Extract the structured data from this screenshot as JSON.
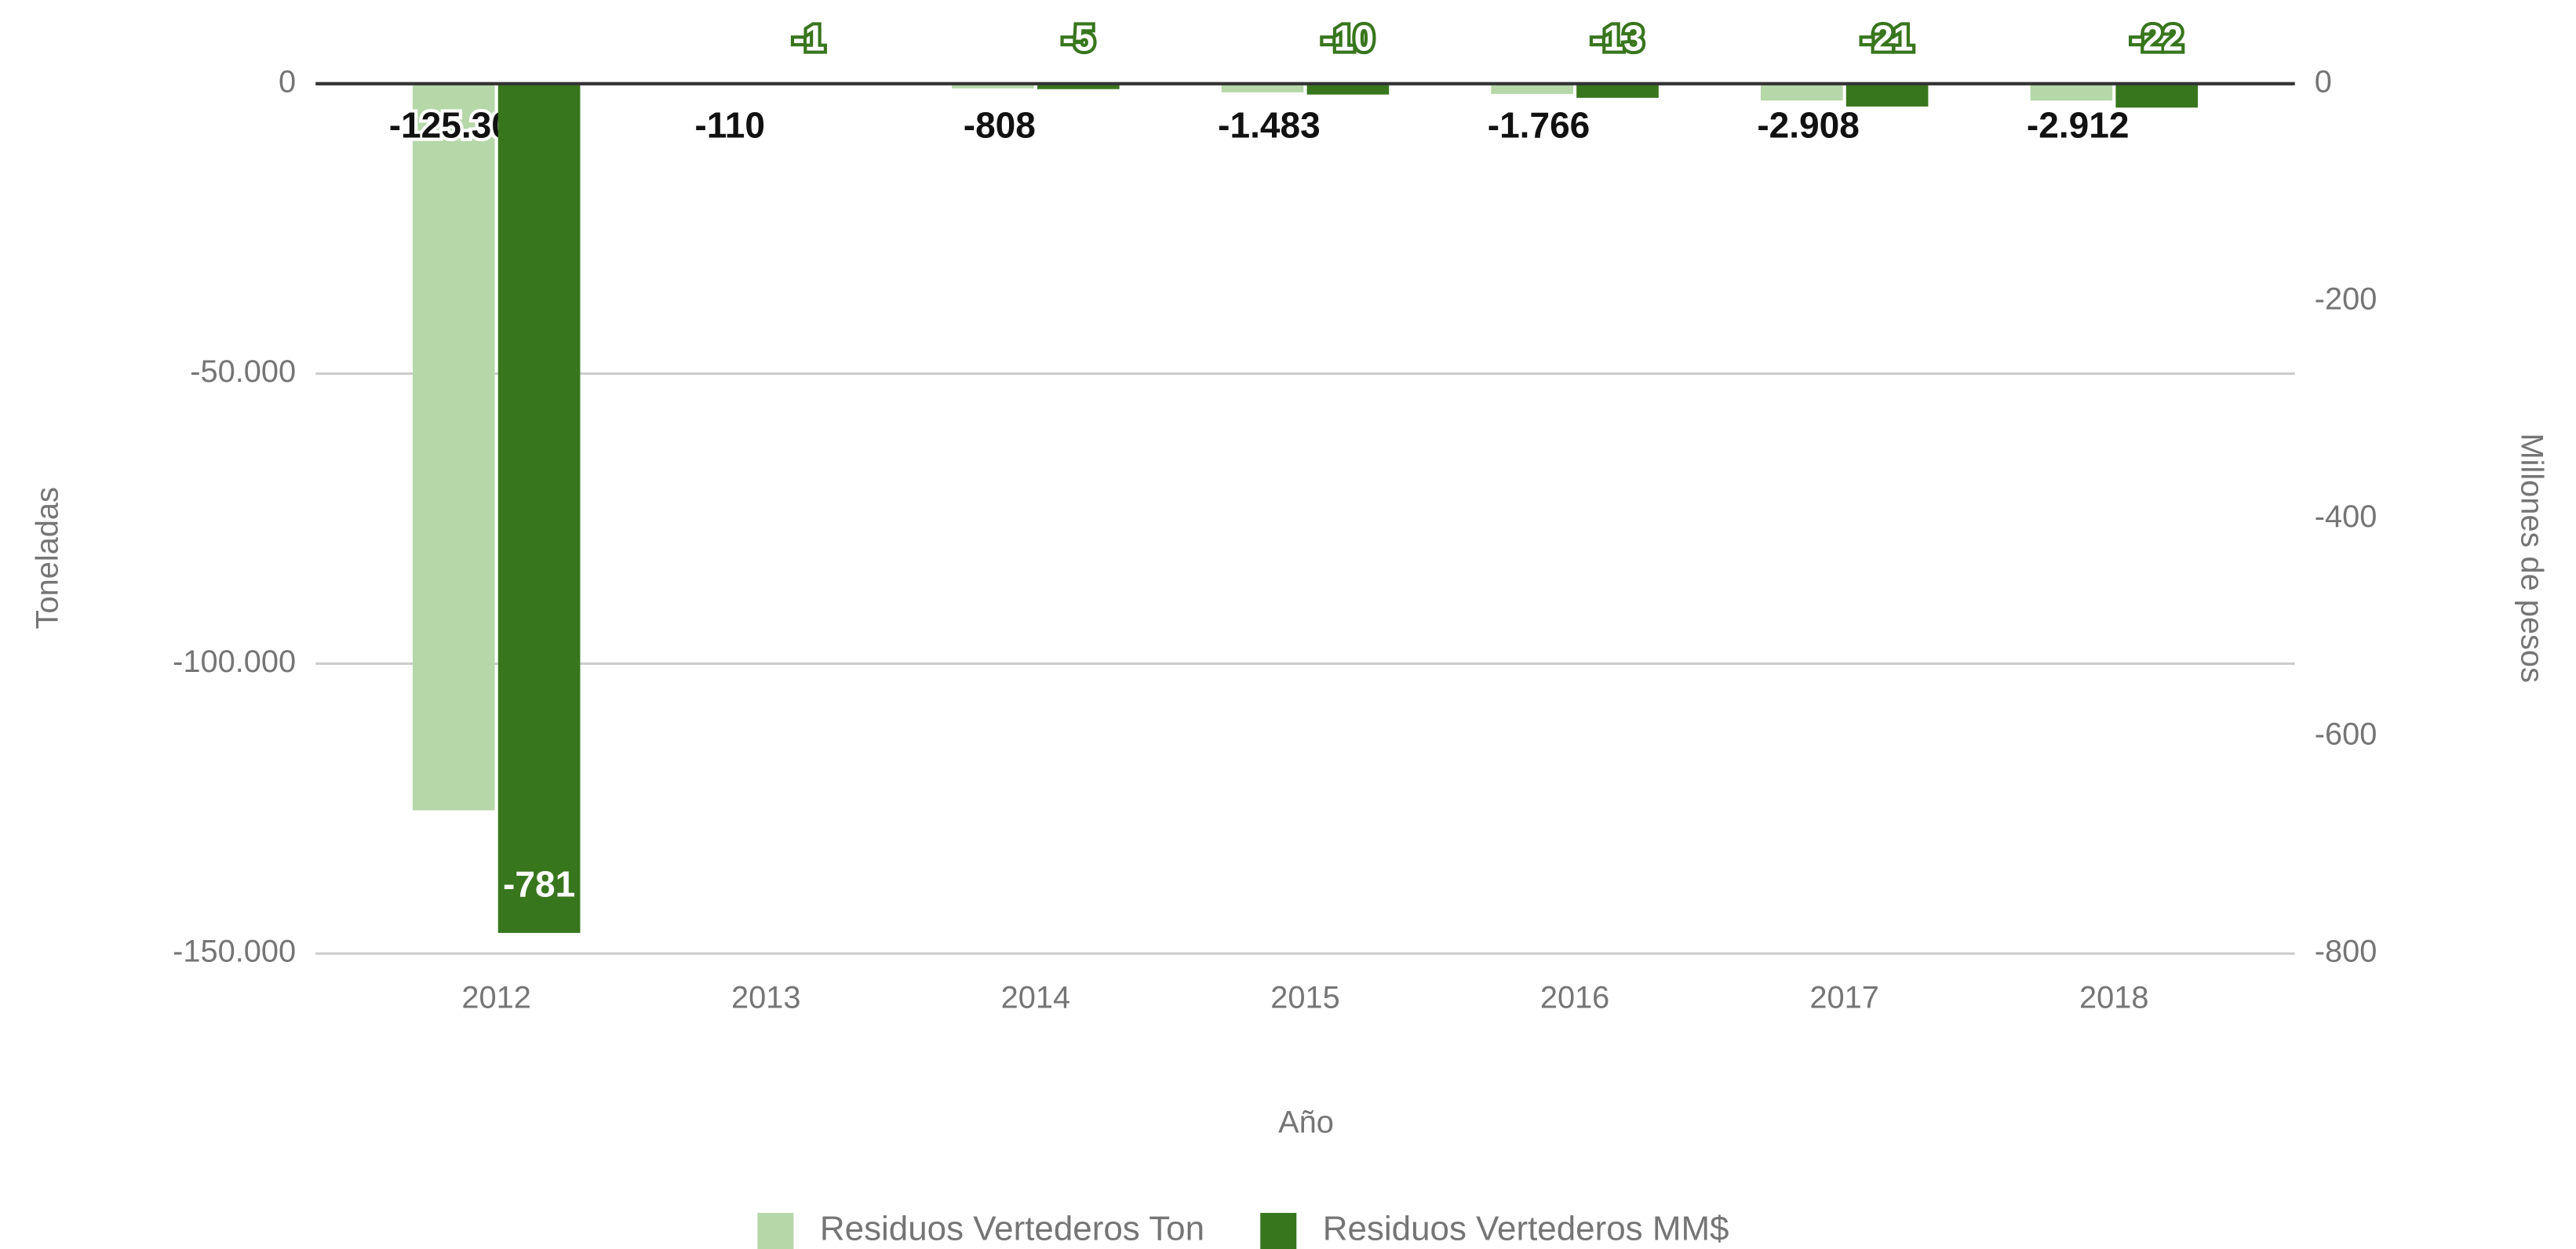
{
  "chart_data": {
    "type": "bar",
    "x_label": "Año",
    "y_label": "Toneladas",
    "y2_label": "Millones de pesos",
    "categories": [
      "2012",
      "2013",
      "2014",
      "2015",
      "2016",
      "2017",
      "2018"
    ],
    "series": [
      {
        "name": "Residuos Vertederos Ton",
        "color": "#b6d7a8",
        "values": [
          -125303,
          -110,
          -808,
          -1483,
          -1766,
          -2908,
          -2912
        ],
        "value_labels": [
          "-125.303",
          "-110",
          "-808",
          "-1.483",
          "-1.766",
          "-2.908",
          "-2.912"
        ]
      },
      {
        "name": "Residuos Vertederos MM$",
        "color": "#38761d",
        "axis": "y2",
        "values": [
          -781,
          -1,
          -5,
          -10,
          -13,
          -21,
          -22
        ]
      }
    ],
    "ylim": [
      -150000,
      0
    ],
    "yticks": [
      0,
      {
        "value": -50000,
        "label": "-50.000"
      },
      {
        "value": -100000,
        "label": "-100.000"
      },
      {
        "value": -150000,
        "label": "-150.000"
      }
    ],
    "y2lim": [
      -800,
      0
    ],
    "y2ticks": [
      0,
      -200,
      -400,
      -600,
      -800
    ],
    "grid": true,
    "legend": "bottom"
  }
}
